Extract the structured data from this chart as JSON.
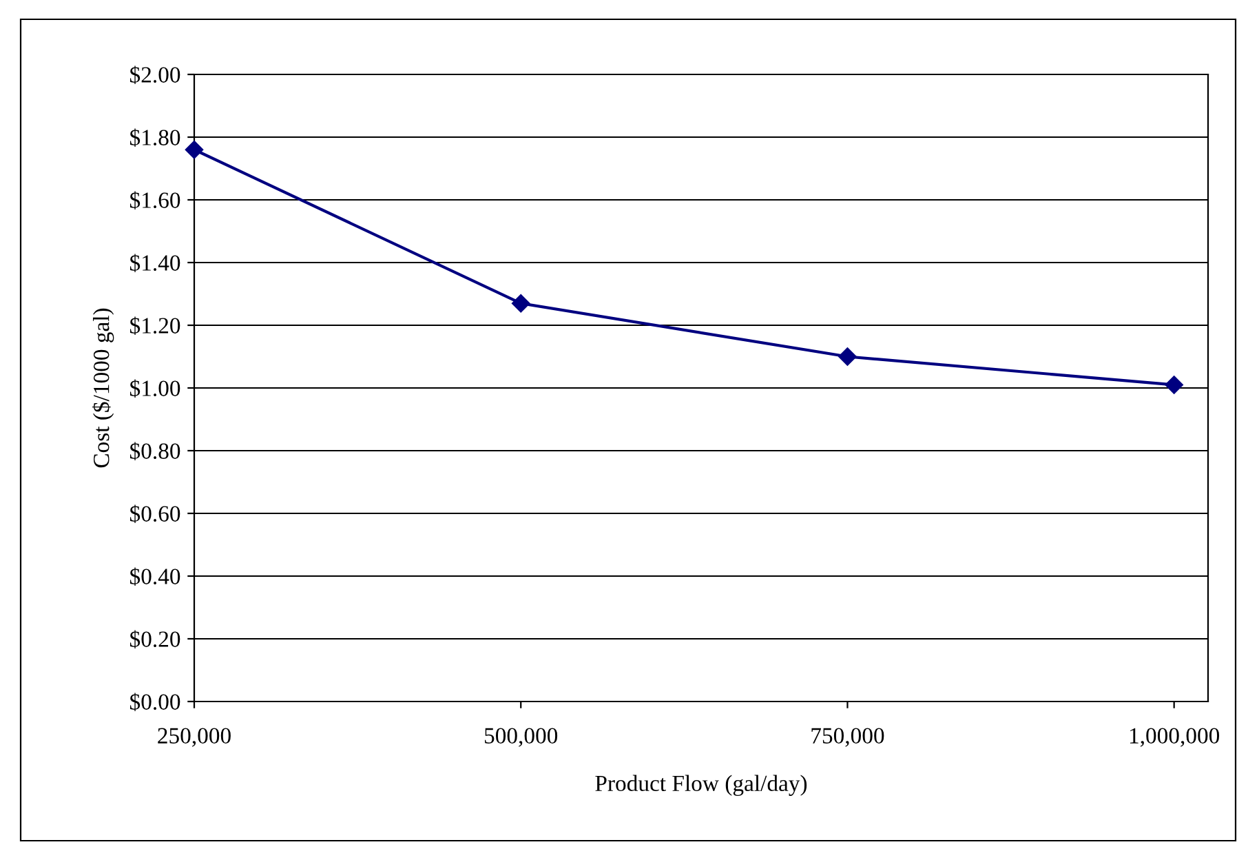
{
  "chart_data": {
    "type": "line",
    "xlabel": "Product Flow (gal/day)",
    "ylabel": "Cost ($/1000 gal)",
    "x": [
      250000,
      500000,
      750000,
      1000000
    ],
    "series": [
      {
        "color": "#000080",
        "values": [
          1.76,
          1.27,
          1.1,
          1.01
        ]
      }
    ],
    "xlim": [
      250000,
      1026000
    ],
    "xticks": [
      {
        "value": 250000,
        "label": "250,000"
      },
      {
        "value": 500000,
        "label": "500,000"
      },
      {
        "value": 750000,
        "label": "750,000"
      },
      {
        "value": 1000000,
        "label": "1,000,000"
      }
    ],
    "ylim": [
      0,
      2
    ],
    "yticks": [
      {
        "value": 0,
        "label": "$0.00"
      },
      {
        "value": 0.2,
        "label": "$0.20"
      },
      {
        "value": 0.4,
        "label": "$0.40"
      },
      {
        "value": 0.6,
        "label": "$0.60"
      },
      {
        "value": 0.8,
        "label": "$0.80"
      },
      {
        "value": 1.0,
        "label": "$1.00"
      },
      {
        "value": 1.2,
        "label": "$1.20"
      },
      {
        "value": 1.4,
        "label": "$1.40"
      },
      {
        "value": 1.6,
        "label": "$1.60"
      },
      {
        "value": 1.8,
        "label": "$1.80"
      },
      {
        "value": 2.0,
        "label": "$2.00"
      }
    ],
    "grid": "y",
    "marker": "diamond",
    "line_style": "solid",
    "legend": false
  }
}
